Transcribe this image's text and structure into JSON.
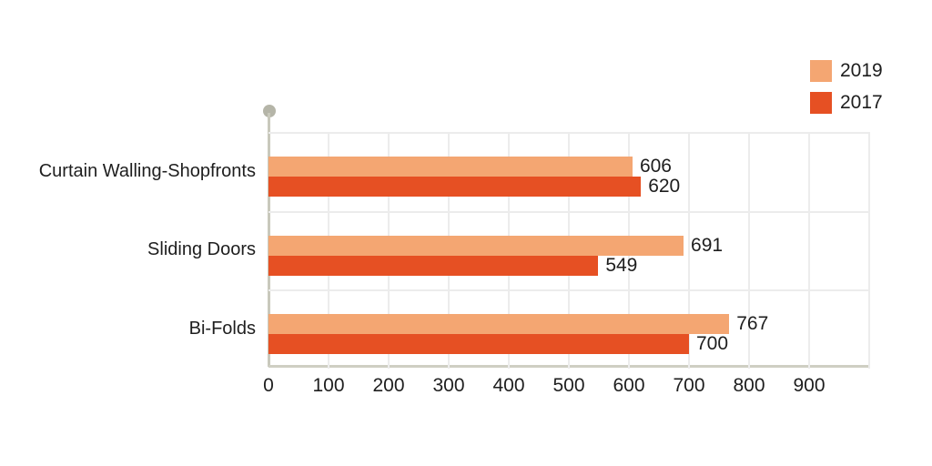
{
  "chart_data": {
    "type": "bar",
    "orientation": "horizontal",
    "title": "",
    "categories": [
      "Curtain Walling-Shopfronts",
      "Sliding Doors",
      "Bi-Folds"
    ],
    "series": [
      {
        "name": "2019",
        "color": "#F4A672",
        "values": [
          606,
          691,
          767
        ]
      },
      {
        "name": "2017",
        "color": "#E65023",
        "values": [
          620,
          549,
          700
        ]
      }
    ],
    "x_ticks": [
      0,
      100,
      200,
      300,
      400,
      500,
      600,
      700,
      800,
      900
    ],
    "xlim": [
      0,
      1000
    ],
    "grid": true,
    "legend_position": "top-right",
    "value_labels_shown": true
  },
  "colors": {
    "axis_line": "#C9C9BC",
    "axis_dot": "#B5B5A8",
    "gridline": "#ECECEC",
    "text": "#1E1E1E",
    "background": "#FFFFFF"
  }
}
